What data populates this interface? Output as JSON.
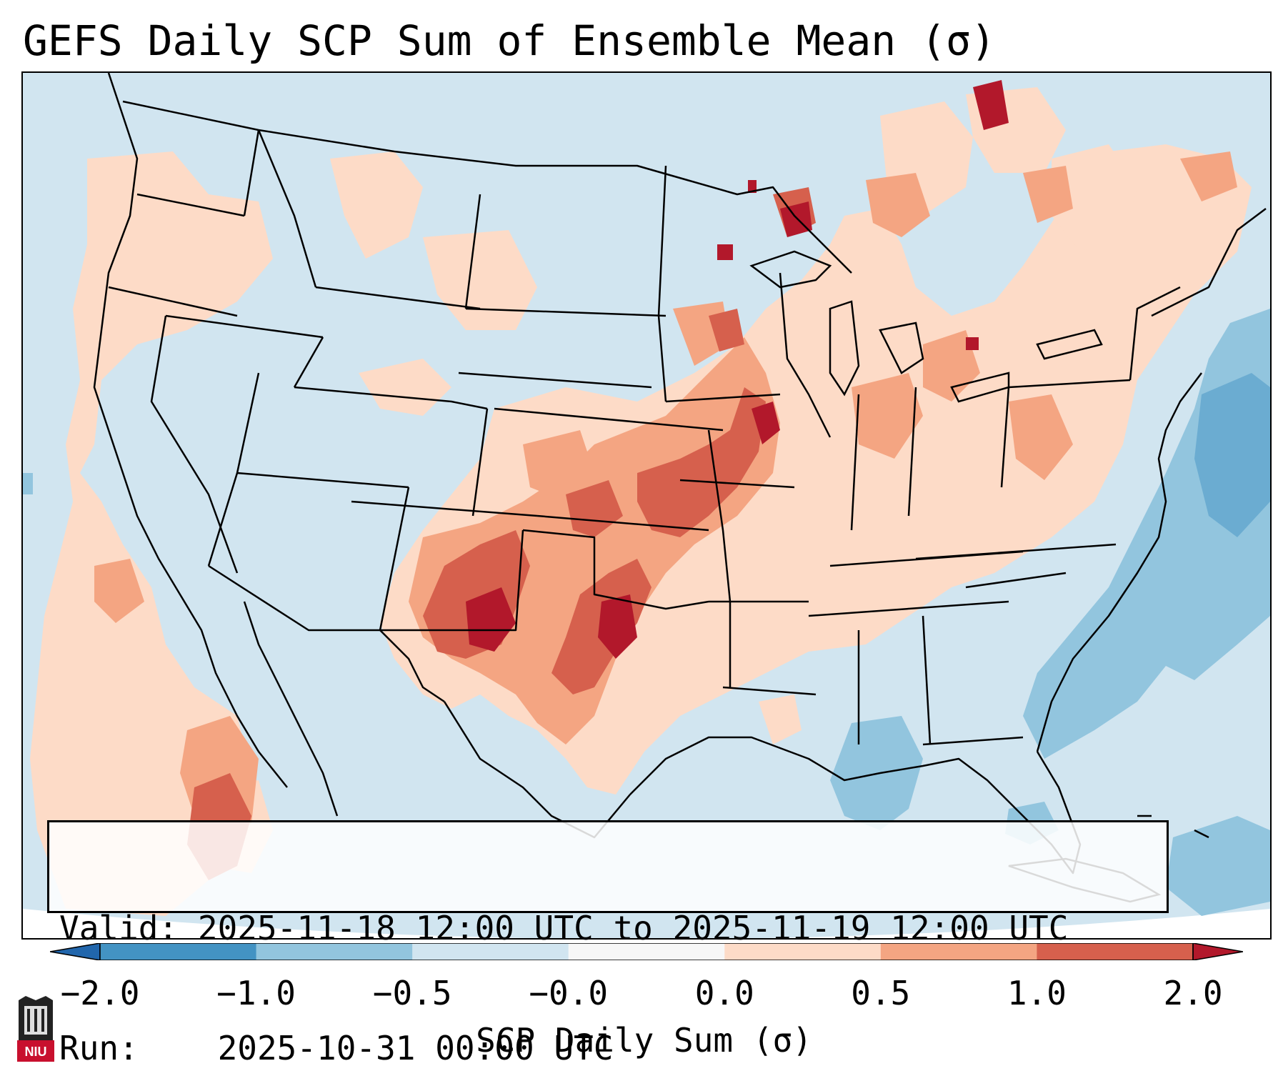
{
  "title": "GEFS Daily SCP Sum of Ensemble Mean (σ)",
  "info": {
    "valid_label": "Valid:",
    "valid_value": "2025-11-18 12:00 UTC to 2025-11-19 12:00 UTC",
    "run_label": "Run:",
    "run_value": "2025-10-31 00:00 UTC"
  },
  "colorbar": {
    "label": "SCP Daily Sum (σ)",
    "ticks": [
      "−2.0",
      "−1.0",
      "−0.5",
      "−0.0",
      "0.0",
      "0.5",
      "1.0",
      "2.0"
    ],
    "colors": [
      "#4393c3",
      "#92c5de",
      "#d1e5f0",
      "#f7f7f7",
      "#fddbc7",
      "#f4a582",
      "#d6604d"
    ],
    "extend_low_color": "#2166ac",
    "extend_high_color": "#b2182b"
  },
  "map": {
    "region": "CONUS",
    "background_color": "#d1e5f0",
    "outside_color": "#ffffff"
  },
  "logo": {
    "text": "NIU",
    "color": "#c8102e"
  }
}
